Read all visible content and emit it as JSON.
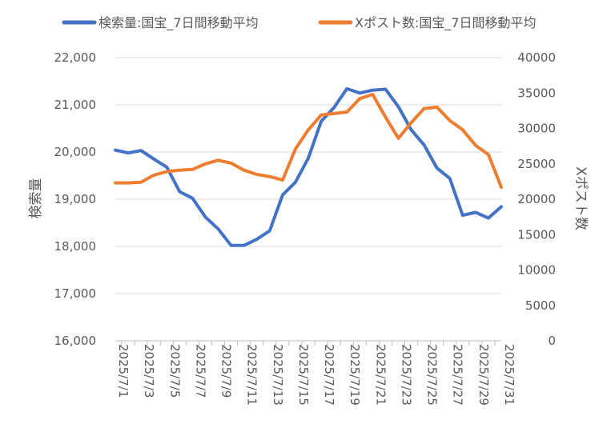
{
  "chart_data": {
    "type": "line",
    "x": [
      "2025/7/1",
      "2025/7/2",
      "2025/7/3",
      "2025/7/4",
      "2025/7/5",
      "2025/7/6",
      "2025/7/7",
      "2025/7/8",
      "2025/7/9",
      "2025/7/10",
      "2025/7/11",
      "2025/7/12",
      "2025/7/13",
      "2025/7/14",
      "2025/7/15",
      "2025/7/16",
      "2025/7/17",
      "2025/7/18",
      "2025/7/19",
      "2025/7/20",
      "2025/7/21",
      "2025/7/22",
      "2025/7/23",
      "2025/7/24",
      "2025/7/25",
      "2025/7/26",
      "2025/7/27",
      "2025/7/28",
      "2025/7/29",
      "2025/7/30",
      "2025/7/31"
    ],
    "x_tick_labels": [
      "2025/7/1",
      "2025/7/3",
      "2025/7/5",
      "2025/7/7",
      "2025/7/9",
      "2025/7/11",
      "2025/7/13",
      "2025/7/15",
      "2025/7/17",
      "2025/7/19",
      "2025/7/21",
      "2025/7/23",
      "2025/7/25",
      "2025/7/27",
      "2025/7/29",
      "2025/7/31"
    ],
    "series": [
      {
        "name": "検索量:国宝_7日間移動平均",
        "axis": "left",
        "color": "#4472C4",
        "values": [
          20040,
          19980,
          20030,
          19850,
          19680,
          19160,
          19020,
          18620,
          18370,
          18020,
          18020,
          18150,
          18330,
          19090,
          19360,
          19870,
          20650,
          20940,
          21340,
          21250,
          21310,
          21330,
          20960,
          20470,
          20150,
          19660,
          19440,
          18660,
          18720,
          18600,
          18840
        ]
      },
      {
        "name": "Xポスト数:国宝_7日間移動平均",
        "axis": "right",
        "color": "#ED7D31",
        "values": [
          22300,
          22300,
          22400,
          23400,
          23900,
          24100,
          24200,
          25000,
          25500,
          25100,
          24100,
          23500,
          23200,
          22700,
          27100,
          29800,
          31900,
          32100,
          32300,
          34200,
          34800,
          31600,
          28600,
          30800,
          32800,
          33000,
          31100,
          29800,
          27600,
          26300,
          21700
        ]
      }
    ],
    "y_left": {
      "label": "検索量",
      "lim": [
        16000,
        22000
      ],
      "ticks": [
        "16,000",
        "17,000",
        "18,000",
        "19,000",
        "20,000",
        "21,000",
        "22,000"
      ]
    },
    "y_right": {
      "label": "Xポスト数",
      "lim": [
        0,
        40000
      ],
      "ticks": [
        "0",
        "5000",
        "10000",
        "15000",
        "20000",
        "25000",
        "30000",
        "35000",
        "40000"
      ]
    },
    "grid": true,
    "legend": "top"
  }
}
